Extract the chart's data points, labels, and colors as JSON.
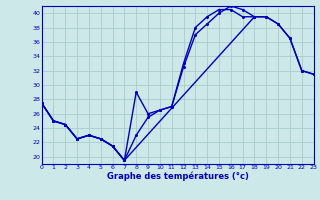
{
  "xlabel": "Graphe des températures (°c)",
  "bg_color": "#cce8e8",
  "line_color": "#0000bb",
  "grid_color": "#aacccc",
  "xlim": [
    0,
    23
  ],
  "ylim": [
    19,
    41
  ],
  "yticks": [
    20,
    22,
    24,
    26,
    28,
    30,
    32,
    34,
    36,
    38,
    40
  ],
  "xticks": [
    0,
    1,
    2,
    3,
    4,
    5,
    6,
    7,
    8,
    9,
    10,
    11,
    12,
    13,
    14,
    15,
    16,
    17,
    18,
    19,
    20,
    21,
    22,
    23
  ],
  "line1_x": [
    0,
    1,
    2,
    3,
    4,
    5,
    6,
    7,
    8,
    9,
    10,
    11,
    12,
    13,
    14,
    15,
    16,
    17,
    18,
    19,
    20,
    21,
    22,
    23
  ],
  "line1_y": [
    27.5,
    25,
    24.5,
    22.5,
    23,
    22.5,
    21.5,
    19.5,
    29,
    26,
    26.5,
    27,
    32.5,
    37,
    38.5,
    40,
    41,
    40.5,
    39.5,
    39.5,
    38.5,
    36.5,
    32,
    31.5
  ],
  "line2_x": [
    0,
    1,
    2,
    3,
    4,
    5,
    6,
    7,
    8,
    9,
    10,
    11,
    12,
    13,
    14,
    15,
    16,
    17,
    18
  ],
  "line2_y": [
    27.5,
    25,
    24.5,
    22.5,
    23,
    22.5,
    21.5,
    19.5,
    23,
    25.5,
    26.5,
    27,
    33,
    38,
    39.5,
    40.5,
    40.5,
    39.5,
    39.5
  ],
  "line3_x": [
    0,
    1,
    2,
    3,
    4,
    5,
    6,
    7,
    18,
    19,
    20,
    21,
    22,
    23
  ],
  "line3_y": [
    27.5,
    25,
    24.5,
    22.5,
    23,
    22.5,
    21.5,
    19.5,
    39.5,
    39.5,
    38.5,
    36.5,
    32,
    31.5
  ]
}
